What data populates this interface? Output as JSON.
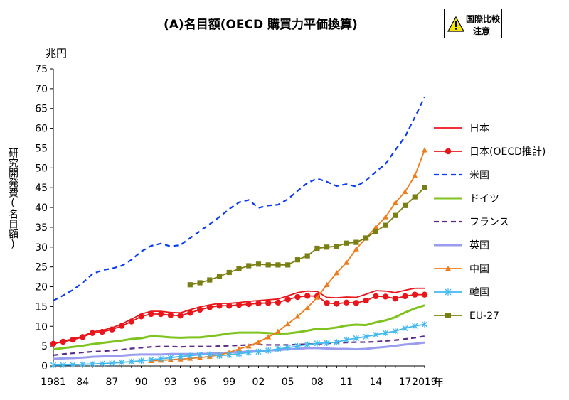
{
  "chart_data": {
    "type": "line",
    "title": "(A)名目額(OECD 購買力平価換算)",
    "warning_badge": {
      "line1": "国際比較",
      "line2": "注意"
    },
    "y_unit": "兆円",
    "ylabel": "研究開発費(名目額)",
    "x_suffix": "年",
    "ylim": [
      0,
      75
    ],
    "y_ticks": [
      0,
      5,
      10,
      15,
      20,
      25,
      30,
      35,
      40,
      45,
      50,
      55,
      60,
      65,
      70,
      75
    ],
    "xlim": [
      1981,
      2019
    ],
    "x_ticks": [
      {
        "year": 1981,
        "label": "1981"
      },
      {
        "year": 1984,
        "label": "84"
      },
      {
        "year": 1987,
        "label": "87"
      },
      {
        "year": 1990,
        "label": "90"
      },
      {
        "year": 1993,
        "label": "93"
      },
      {
        "year": 1996,
        "label": "96"
      },
      {
        "year": 1999,
        "label": "99"
      },
      {
        "year": 2002,
        "label": "02"
      },
      {
        "year": 2005,
        "label": "05"
      },
      {
        "year": 2008,
        "label": "08"
      },
      {
        "year": 2011,
        "label": "11"
      },
      {
        "year": 2014,
        "label": "14"
      },
      {
        "year": 2017,
        "label": "17"
      },
      {
        "year": 2019,
        "label": "2019"
      }
    ],
    "grid": false,
    "legend_position": "right",
    "series": [
      {
        "name": "日本",
        "color": "#e8161b",
        "style": "solid",
        "marker": "none",
        "start": 1981,
        "values": [
          5.5,
          6.3,
          6.8,
          7.5,
          8.6,
          9.0,
          9.6,
          10.6,
          11.8,
          13.1,
          13.8,
          13.8,
          13.5,
          13.4,
          14.2,
          14.9,
          15.4,
          15.8,
          15.8,
          16.0,
          16.3,
          16.5,
          16.7,
          16.9,
          17.7,
          18.5,
          18.9,
          18.8,
          17.3,
          17.2,
          17.4,
          17.3,
          18.1,
          19.0,
          18.9,
          18.5,
          19.1,
          19.6,
          19.6
        ]
      },
      {
        "name": "日本(OECD推計)",
        "color": "#e8161b",
        "style": "solid",
        "marker": "circle",
        "start": 1981,
        "values": [
          5.6,
          6.1,
          6.6,
          7.3,
          8.3,
          8.6,
          9.2,
          10.1,
          11.2,
          12.5,
          13.1,
          13.1,
          12.8,
          12.7,
          13.4,
          14.2,
          14.8,
          15.2,
          15.2,
          15.4,
          15.6,
          15.8,
          15.9,
          16.0,
          16.8,
          17.4,
          17.7,
          17.6,
          15.9,
          15.7,
          16.0,
          15.9,
          16.5,
          17.6,
          17.5,
          17.0,
          17.6,
          18.0,
          18.0
        ]
      },
      {
        "name": "米国",
        "color": "#0b3cf2",
        "style": "dashed",
        "marker": "none",
        "start": 1981,
        "values": [
          16.5,
          17.8,
          19.2,
          21.0,
          23.2,
          24.2,
          24.6,
          25.3,
          26.8,
          28.9,
          30.3,
          30.9,
          30.2,
          30.5,
          32.3,
          34.0,
          35.8,
          37.6,
          39.6,
          41.3,
          41.9,
          39.9,
          40.5,
          40.7,
          42.1,
          44.2,
          46.2,
          47.3,
          46.5,
          45.4,
          45.9,
          45.3,
          46.8,
          49.0,
          51.0,
          54.5,
          57.9,
          62.8,
          67.9
        ]
      },
      {
        "name": "ドイツ",
        "color": "#7ec31e",
        "style": "solid",
        "marker": "none",
        "start": 1981,
        "values": [
          4.2,
          4.5,
          4.8,
          5.1,
          5.5,
          5.8,
          6.1,
          6.4,
          6.8,
          7.0,
          7.5,
          7.4,
          7.2,
          7.1,
          7.2,
          7.2,
          7.5,
          7.8,
          8.2,
          8.4,
          8.4,
          8.4,
          8.3,
          8.1,
          8.2,
          8.5,
          8.9,
          9.4,
          9.4,
          9.7,
          10.2,
          10.4,
          10.3,
          11.0,
          11.5,
          12.3,
          13.5,
          14.5,
          15.3
        ]
      },
      {
        "name": "フランス",
        "color": "#5b2b89",
        "style": "dashed",
        "marker": "none",
        "start": 1981,
        "values": [
          2.7,
          3.0,
          3.2,
          3.4,
          3.6,
          3.7,
          3.9,
          4.1,
          4.4,
          4.6,
          4.8,
          4.9,
          4.9,
          4.8,
          4.9,
          4.9,
          4.9,
          5.0,
          5.1,
          5.2,
          5.3,
          5.4,
          5.3,
          5.3,
          5.3,
          5.4,
          5.5,
          5.6,
          5.7,
          5.8,
          5.9,
          6.0,
          6.0,
          6.1,
          6.3,
          6.5,
          6.8,
          7.1,
          7.5
        ]
      },
      {
        "name": "英国",
        "color": "#9a9cf0",
        "style": "solid",
        "marker": "none",
        "start": 1981,
        "values": [
          1.8,
          1.9,
          2.0,
          2.1,
          2.3,
          2.4,
          2.5,
          2.6,
          2.8,
          2.9,
          2.9,
          2.9,
          3.0,
          3.0,
          3.0,
          3.0,
          3.1,
          3.2,
          3.4,
          3.5,
          3.6,
          3.8,
          3.9,
          4.0,
          4.2,
          4.3,
          4.5,
          4.5,
          4.4,
          4.3,
          4.3,
          4.2,
          4.3,
          4.6,
          4.8,
          5.1,
          5.4,
          5.6,
          5.9
        ]
      },
      {
        "name": "中国",
        "color": "#ee7d1e",
        "style": "solid",
        "marker": "triangle",
        "start": 1991,
        "values": [
          1.3,
          1.4,
          1.6,
          1.7,
          1.9,
          2.1,
          2.4,
          2.8,
          3.4,
          4.3,
          5.0,
          6.0,
          7.3,
          8.7,
          10.6,
          12.5,
          14.7,
          17.3,
          20.5,
          23.5,
          26.1,
          29.5,
          32.3,
          35.0,
          37.6,
          41.2,
          44.0,
          48.0,
          54.5
        ]
      },
      {
        "name": "韓国",
        "color": "#43b9ef",
        "style": "solid",
        "marker": "star",
        "start": 1981,
        "values": [
          0.2,
          0.2,
          0.3,
          0.4,
          0.5,
          0.6,
          0.7,
          0.9,
          1.1,
          1.3,
          1.6,
          1.8,
          2.1,
          2.4,
          2.6,
          2.8,
          2.9,
          2.6,
          2.8,
          3.1,
          3.4,
          3.6,
          3.9,
          4.3,
          4.6,
          5.0,
          5.4,
          5.7,
          5.8,
          6.0,
          6.6,
          7.0,
          7.4,
          7.9,
          8.3,
          8.8,
          9.5,
          10.1,
          10.5
        ]
      },
      {
        "name": "EU-27",
        "color": "#7a7f14",
        "style": "solid",
        "marker": "square",
        "start": 1995,
        "values": [
          20.5,
          21.0,
          21.7,
          22.6,
          23.6,
          24.5,
          25.3,
          25.7,
          25.5,
          25.5,
          25.5,
          26.8,
          27.8,
          29.7,
          30.0,
          30.2,
          31.0,
          31.2,
          32.3,
          34.0,
          35.5,
          38.0,
          40.5,
          42.7,
          45.0
        ]
      }
    ]
  }
}
